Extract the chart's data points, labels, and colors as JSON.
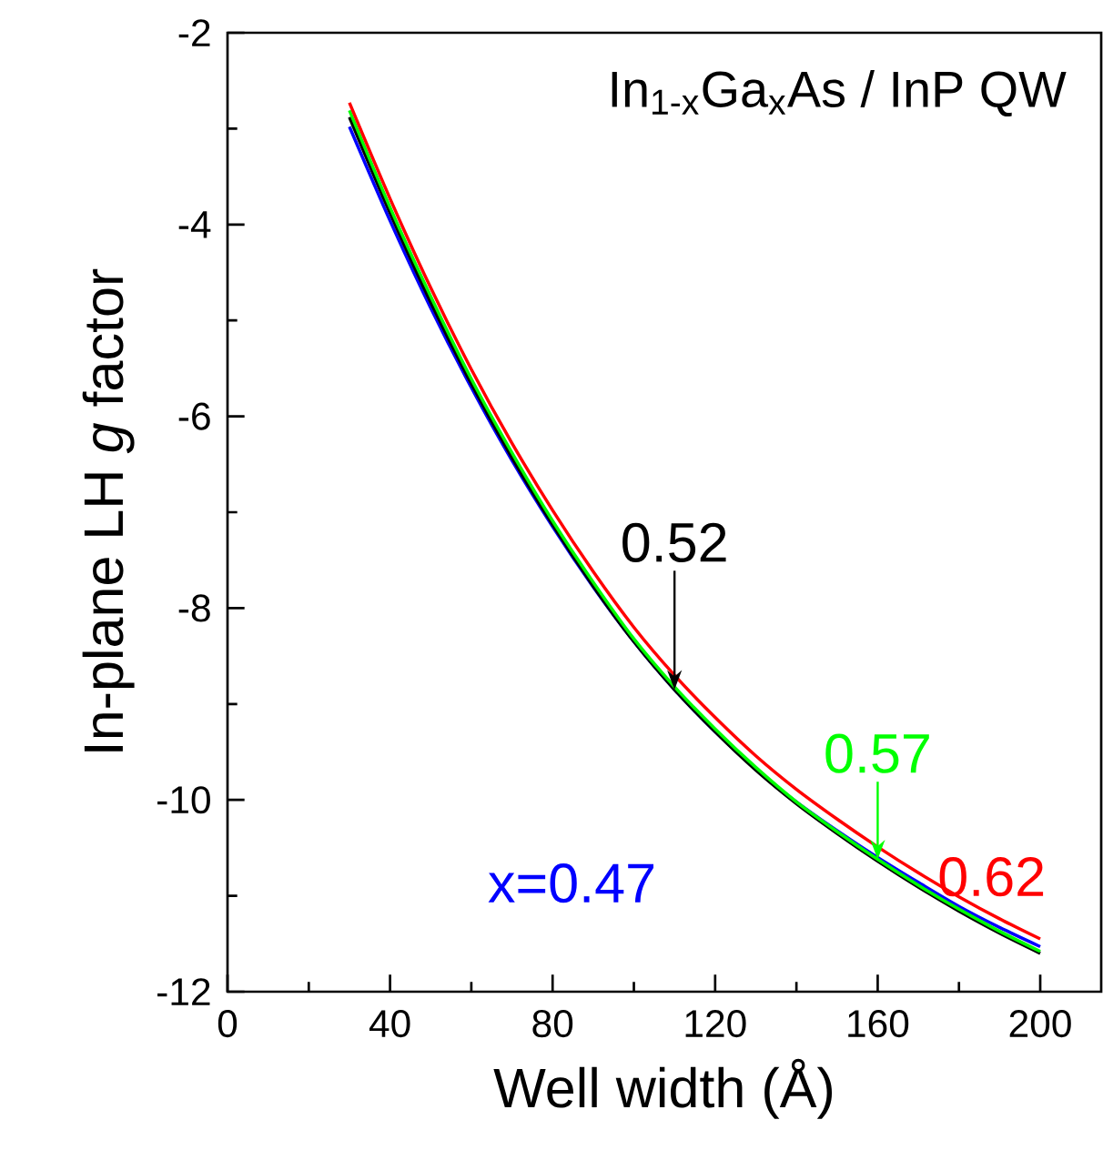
{
  "chart_data": {
    "type": "line",
    "title": "In$_{1-x}$Ga$_{x}$As / InP QW",
    "xlabel": "Well width (Å)",
    "ylabel": "In-plane LH *g* factor",
    "x": [
      30,
      40,
      50,
      60,
      70,
      80,
      90,
      100,
      110,
      120,
      130,
      140,
      150,
      160,
      170,
      180,
      190,
      200
    ],
    "series": [
      {
        "name": "x=0.47",
        "color": "#0000ff",
        "values": [
          -2.98,
          -3.96,
          -4.87,
          -5.7,
          -6.46,
          -7.15,
          -7.78,
          -8.35,
          -8.85,
          -9.29,
          -9.68,
          -10.02,
          -10.32,
          -10.6,
          -10.86,
          -11.11,
          -11.33,
          -11.53
        ]
      },
      {
        "name": "0.52",
        "color": "#000000",
        "values": [
          -2.88,
          -3.88,
          -4.81,
          -5.66,
          -6.43,
          -7.13,
          -7.77,
          -8.35,
          -8.85,
          -9.29,
          -9.69,
          -10.04,
          -10.35,
          -10.64,
          -10.91,
          -11.16,
          -11.39,
          -11.6
        ]
      },
      {
        "name": "0.57",
        "color": "#00ff00",
        "values": [
          -2.81,
          -3.82,
          -4.75,
          -5.61,
          -6.38,
          -7.09,
          -7.73,
          -8.32,
          -8.82,
          -9.26,
          -9.66,
          -10.02,
          -10.33,
          -10.62,
          -10.89,
          -11.14,
          -11.37,
          -11.58
        ]
      },
      {
        "name": "0.62",
        "color": "#ff0000",
        "values": [
          -2.73,
          -3.73,
          -4.66,
          -5.51,
          -6.28,
          -6.98,
          -7.62,
          -8.2,
          -8.7,
          -9.14,
          -9.54,
          -9.89,
          -10.2,
          -10.49,
          -10.76,
          -11.01,
          -11.24,
          -11.45
        ]
      }
    ],
    "xlim": [
      0,
      215
    ],
    "ylim": [
      -12,
      -2
    ],
    "xticks": [
      0,
      40,
      80,
      120,
      160,
      200
    ],
    "yticks": [
      -12,
      -10,
      -8,
      -6,
      -4,
      -2
    ],
    "grid": false,
    "legend": false,
    "marker": "none",
    "line_style": "solid"
  }
}
